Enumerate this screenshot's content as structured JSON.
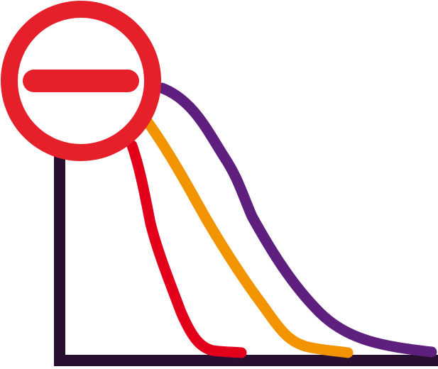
{
  "icon": {
    "name": "decline-curves-with-minus-sign-icon",
    "colors": {
      "axes": "#2a1030",
      "curve_red": "#e3001b",
      "curve_orange": "#f29400",
      "curve_purple": "#5f1f7f",
      "badge_ring": "#e5202a",
      "badge_fill": "#ffffff",
      "badge_minus": "#e5202a"
    }
  }
}
